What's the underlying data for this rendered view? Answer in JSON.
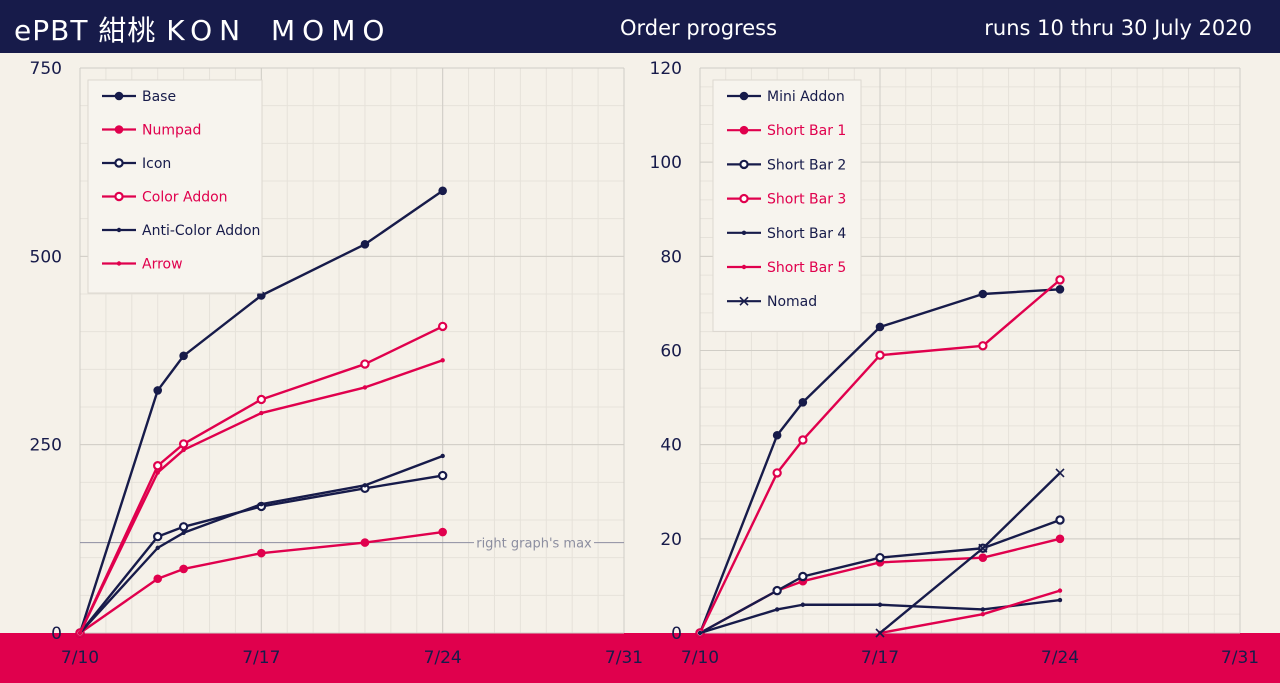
{
  "header": {
    "brand": "ePBT",
    "kanji": "紺桃",
    "name_kon": "KON",
    "name_momo": "MOMO",
    "center_title": "Order progress",
    "right_title": "runs 10 thru 30 July 2020"
  },
  "colors": {
    "navy": "#171b4a",
    "crimson": "#e0004d",
    "background": "#f5f1e9",
    "grid_major": "#d0cdc6",
    "grid_minor": "#e6e2da",
    "annotation": "#8c8ea0"
  },
  "chart_data": [
    {
      "type": "line",
      "title": "",
      "xlabel": "",
      "ylabel": "",
      "x_ticks": [
        "7/10",
        "7/17",
        "7/24",
        "7/31"
      ],
      "xlim": [
        "2020-07-10",
        "2020-07-31"
      ],
      "ylim": [
        0,
        750
      ],
      "y_ticks": [
        0,
        250,
        500,
        750
      ],
      "grid": true,
      "legend_position": "top-left",
      "annotations": [
        {
          "text": "right graph's max",
          "y": 120
        }
      ],
      "series": [
        {
          "name": "Base",
          "color": "#171b4a",
          "marker": "dot",
          "x": [
            "2020-07-10",
            "2020-07-13",
            "2020-07-14",
            "2020-07-17",
            "2020-07-21",
            "2020-07-24"
          ],
          "y": [
            0,
            322,
            368,
            448,
            516,
            587
          ]
        },
        {
          "name": "Numpad",
          "color": "#e0004d",
          "marker": "dot",
          "x": [
            "2020-07-10",
            "2020-07-13",
            "2020-07-14",
            "2020-07-17",
            "2020-07-21",
            "2020-07-24"
          ],
          "y": [
            0,
            72,
            85,
            106,
            120,
            134
          ]
        },
        {
          "name": "Icon",
          "color": "#171b4a",
          "marker": "ring",
          "x": [
            "2020-07-10",
            "2020-07-13",
            "2020-07-14",
            "2020-07-17",
            "2020-07-21",
            "2020-07-24"
          ],
          "y": [
            0,
            128,
            141,
            168,
            192,
            209
          ]
        },
        {
          "name": "Color Addon",
          "color": "#e0004d",
          "marker": "ring",
          "x": [
            "2020-07-10",
            "2020-07-13",
            "2020-07-14",
            "2020-07-17",
            "2020-07-21",
            "2020-07-24"
          ],
          "y": [
            0,
            222,
            251,
            310,
            357,
            407
          ]
        },
        {
          "name": "Anti-Color Addon",
          "color": "#171b4a",
          "marker": "small",
          "x": [
            "2020-07-10",
            "2020-07-13",
            "2020-07-14",
            "2020-07-17",
            "2020-07-21",
            "2020-07-24"
          ],
          "y": [
            0,
            113,
            133,
            171,
            196,
            235
          ]
        },
        {
          "name": "Arrow",
          "color": "#e0004d",
          "marker": "small",
          "x": [
            "2020-07-10",
            "2020-07-13",
            "2020-07-14",
            "2020-07-17",
            "2020-07-21",
            "2020-07-24"
          ],
          "y": [
            0,
            213,
            243,
            292,
            326,
            362
          ]
        }
      ]
    },
    {
      "type": "line",
      "title": "",
      "xlabel": "",
      "ylabel": "",
      "x_ticks": [
        "7/10",
        "7/17",
        "7/24",
        "7/31"
      ],
      "xlim": [
        "2020-07-10",
        "2020-07-31"
      ],
      "ylim": [
        0,
        120
      ],
      "y_ticks": [
        0,
        20,
        40,
        60,
        80,
        100,
        120
      ],
      "grid": true,
      "legend_position": "top-left",
      "series": [
        {
          "name": "Mini Addon",
          "color": "#171b4a",
          "marker": "dot",
          "x": [
            "2020-07-10",
            "2020-07-13",
            "2020-07-14",
            "2020-07-17",
            "2020-07-21",
            "2020-07-24"
          ],
          "y": [
            0,
            42,
            49,
            65,
            72,
            73
          ]
        },
        {
          "name": "Short Bar 1",
          "color": "#e0004d",
          "marker": "dot",
          "x": [
            "2020-07-10",
            "2020-07-13",
            "2020-07-14",
            "2020-07-17",
            "2020-07-21",
            "2020-07-24"
          ],
          "y": [
            0,
            9,
            11,
            15,
            16,
            20
          ]
        },
        {
          "name": "Short Bar 2",
          "color": "#171b4a",
          "marker": "ring",
          "x": [
            "2020-07-10",
            "2020-07-13",
            "2020-07-14",
            "2020-07-17",
            "2020-07-21",
            "2020-07-24"
          ],
          "y": [
            0,
            9,
            12,
            16,
            18,
            24
          ]
        },
        {
          "name": "Short Bar 3",
          "color": "#e0004d",
          "marker": "ring",
          "x": [
            "2020-07-10",
            "2020-07-13",
            "2020-07-14",
            "2020-07-17",
            "2020-07-21",
            "2020-07-24"
          ],
          "y": [
            0,
            34,
            41,
            59,
            61,
            75
          ]
        },
        {
          "name": "Short Bar 4",
          "color": "#171b4a",
          "marker": "small",
          "x": [
            "2020-07-10",
            "2020-07-13",
            "2020-07-14",
            "2020-07-17",
            "2020-07-21",
            "2020-07-24"
          ],
          "y": [
            0,
            5,
            6,
            6,
            5,
            7
          ]
        },
        {
          "name": "Short Bar 5",
          "color": "#e0004d",
          "marker": "small",
          "x": [
            "2020-07-17",
            "2020-07-21",
            "2020-07-24"
          ],
          "y": [
            0,
            4,
            9
          ]
        },
        {
          "name": "Nomad",
          "color": "#171b4a",
          "marker": "cross",
          "x": [
            "2020-07-17",
            "2020-07-21",
            "2020-07-24"
          ],
          "y": [
            0,
            18,
            34
          ]
        }
      ]
    }
  ]
}
